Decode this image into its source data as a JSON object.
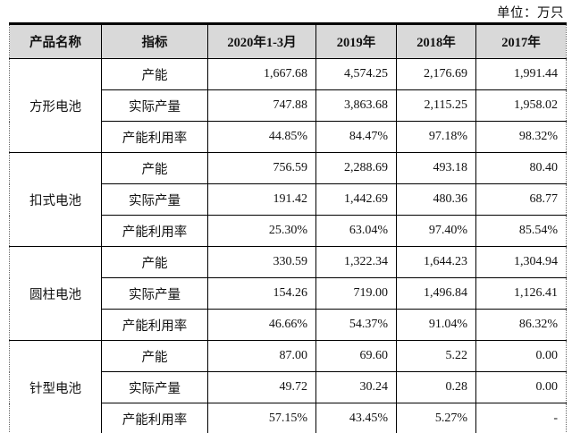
{
  "unit_label": "单位：万只",
  "colors": {
    "header_bg": "#d9d9d9",
    "border": "#000000",
    "text": "#111111"
  },
  "table": {
    "headers": [
      "产品名称",
      "指标",
      "2020年1-3月",
      "2019年",
      "2018年",
      "2017年"
    ],
    "groups": [
      {
        "product": "方形电池",
        "rows": [
          {
            "metric": "产能",
            "values": [
              "1,667.68",
              "4,574.25",
              "2,176.69",
              "1,991.44"
            ]
          },
          {
            "metric": "实际产量",
            "values": [
              "747.88",
              "3,863.68",
              "2,115.25",
              "1,958.02"
            ]
          },
          {
            "metric": "产能利用率",
            "values": [
              "44.85%",
              "84.47%",
              "97.18%",
              "98.32%"
            ]
          }
        ]
      },
      {
        "product": "扣式电池",
        "rows": [
          {
            "metric": "产能",
            "values": [
              "756.59",
              "2,288.69",
              "493.18",
              "80.40"
            ]
          },
          {
            "metric": "实际产量",
            "values": [
              "191.42",
              "1,442.69",
              "480.36",
              "68.77"
            ]
          },
          {
            "metric": "产能利用率",
            "values": [
              "25.30%",
              "63.04%",
              "97.40%",
              "85.54%"
            ]
          }
        ]
      },
      {
        "product": "圆柱电池",
        "rows": [
          {
            "metric": "产能",
            "values": [
              "330.59",
              "1,322.34",
              "1,644.23",
              "1,304.94"
            ]
          },
          {
            "metric": "实际产量",
            "values": [
              "154.26",
              "719.00",
              "1,496.84",
              "1,126.41"
            ]
          },
          {
            "metric": "产能利用率",
            "values": [
              "46.66%",
              "54.37%",
              "91.04%",
              "86.32%"
            ]
          }
        ]
      },
      {
        "product": "针型电池",
        "rows": [
          {
            "metric": "产能",
            "values": [
              "87.00",
              "69.60",
              "5.22",
              "0.00"
            ]
          },
          {
            "metric": "实际产量",
            "values": [
              "49.72",
              "30.24",
              "0.28",
              "0.00"
            ]
          },
          {
            "metric": "产能利用率",
            "values": [
              "57.15%",
              "43.45%",
              "5.27%",
              "-"
            ]
          }
        ]
      }
    ]
  }
}
